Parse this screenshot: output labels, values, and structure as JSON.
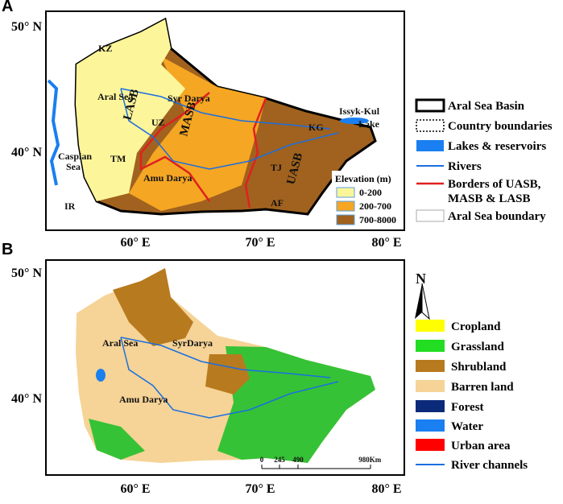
{
  "panels": [
    {
      "label": "A",
      "lat_labels": [
        "50° N",
        "40° N"
      ],
      "lon_labels": [
        "60° E",
        "70° E",
        "80° E"
      ],
      "map_labels": [
        "KZ",
        "Aral Sea",
        "Syr Darya",
        "LASB",
        "UZ",
        "MASB",
        "KG",
        "Issyk-Kul",
        "Lake",
        "Caspian",
        "Sea",
        "TM",
        "Amu Darya",
        "TJ",
        "UASB",
        "AF",
        "IR"
      ],
      "elevation_legend": {
        "title": "Elevation (m)",
        "classes": [
          "0-200",
          "200-700",
          "700-8000"
        ]
      },
      "legend": [
        "Aral Sea Basin",
        "Country boundaries",
        "Lakes & reservoirs",
        "Rivers",
        "Borders of UASB,",
        "MASB & LASB",
        "Aral Sea boundary"
      ]
    },
    {
      "label": "B",
      "lat_labels": [
        "50° N",
        "40° N"
      ],
      "lon_labels": [
        "60° E",
        "70° E",
        "80° E"
      ],
      "map_labels": [
        "Aral Sea",
        "SyrDarya",
        "Amu Darya",
        "N"
      ],
      "scale_labels": [
        "0",
        "245",
        "490",
        "980",
        "Km"
      ],
      "legend": [
        "Cropland",
        "Grassland",
        "Shrubland",
        "Barren land",
        "Forest",
        "Water",
        "Urban area",
        "River channels"
      ]
    }
  ]
}
